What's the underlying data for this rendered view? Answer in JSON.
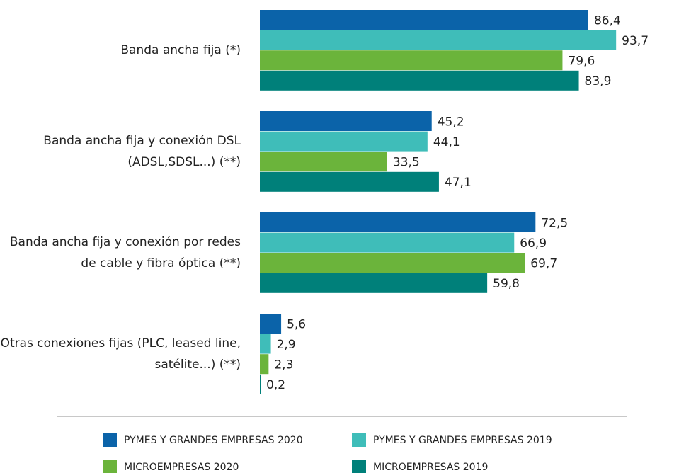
{
  "chart_data": {
    "type": "bar",
    "orientation": "horizontal",
    "categories": [
      "Banda ancha fija (*)",
      "Banda ancha fija y conexión DSL (ADSL,SDSL...) (**)",
      "Banda ancha fija y conexión por redes de cable y fibra óptica (**)",
      "Otras conexiones fijas (PLC, leased line, satélite...) (**)"
    ],
    "series": [
      {
        "name": "PYMES Y GRANDES EMPRESAS 2020",
        "color": "#0b63a9",
        "values": [
          86.4,
          45.2,
          72.5,
          5.6
        ],
        "value_labels": [
          "86,4",
          "45,2",
          "72,5",
          "5,6"
        ]
      },
      {
        "name": "PYMES Y GRANDES EMPRESAS 2019",
        "color": "#3fbdb9",
        "values": [
          93.7,
          44.1,
          66.9,
          2.9
        ],
        "value_labels": [
          "93,7",
          "44,1",
          "66,9",
          "2,9"
        ]
      },
      {
        "name": "MICROEMPRESAS 2020",
        "color": "#6bb43b",
        "values": [
          79.6,
          33.5,
          69.7,
          2.3
        ],
        "value_labels": [
          "79,6",
          "33,5",
          "69,7",
          "2,3"
        ]
      },
      {
        "name": "MICROEMPRESAS 2019",
        "color": "#00807a",
        "values": [
          83.9,
          47.1,
          59.8,
          0.2
        ],
        "value_labels": [
          "83,9",
          "47,1",
          "59,8",
          "0,2"
        ]
      }
    ]
  }
}
